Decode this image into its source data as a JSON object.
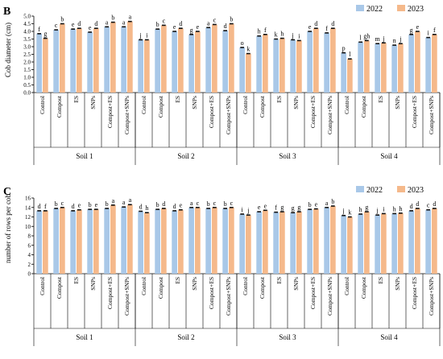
{
  "chart_data": [
    {
      "type": "bar",
      "panel_label": "B",
      "ylabel": "Cob diameter (cm)",
      "ylim": [
        0,
        5
      ],
      "yticks": [
        "0.0",
        "0.5",
        "1.0",
        "1.5",
        "2.0",
        "2.5",
        "3.0",
        "3.5",
        "4.0",
        "4.5",
        "5.0"
      ],
      "grid": false,
      "legend_position": "top-right",
      "groups": [
        "Soil 1",
        "Soil 2",
        "Soil 3",
        "Soil 4"
      ],
      "treatments": [
        "Control",
        "Compost",
        "ES",
        "SNPs",
        "Compost+ES",
        "Compost+SNPs"
      ],
      "series": [
        {
          "name": "2022",
          "color": "#a9c8e8",
          "values": [
            3.85,
            4.1,
            4.15,
            3.95,
            4.3,
            4.3,
            3.45,
            4.15,
            4.0,
            3.8,
            4.25,
            4.05,
            2.95,
            3.7,
            3.5,
            3.45,
            4.0,
            3.9,
            2.6,
            3.3,
            3.2,
            3.1,
            3.8,
            3.6
          ],
          "labels": [
            "f",
            "c",
            "e",
            "e",
            "a",
            "a",
            "j",
            "b",
            "e",
            "g",
            "a",
            "d",
            "o",
            "h",
            "k",
            "j",
            "e",
            "f",
            "p",
            "l",
            "m",
            "n",
            "g",
            "i"
          ]
        },
        {
          "name": "2023",
          "color": "#f5b98b",
          "values": [
            3.55,
            4.5,
            4.2,
            4.2,
            4.6,
            4.65,
            3.45,
            4.4,
            4.2,
            4.0,
            4.45,
            4.5,
            2.55,
            3.8,
            3.55,
            3.4,
            4.2,
            4.2,
            2.2,
            3.4,
            3.25,
            3.2,
            4.0,
            3.8
          ],
          "labels": [
            "g",
            "b",
            "d",
            "d",
            "b",
            "a",
            "i",
            "c",
            "d",
            "e",
            "c",
            "b",
            "k",
            "f",
            "h",
            "i",
            "d",
            "d",
            "l",
            "gh",
            "j",
            "j",
            "e",
            "f"
          ]
        }
      ]
    },
    {
      "type": "bar",
      "panel_label": "C",
      "ylabel": "number of rows per cob",
      "ylim": [
        0,
        16
      ],
      "yticks": [
        "0",
        "2",
        "4",
        "6",
        "8",
        "10",
        "12",
        "14",
        "16"
      ],
      "grid": false,
      "legend_position": "top-right",
      "groups": [
        "Soil 1",
        "Soil 2",
        "Soil 3",
        "Soil 4"
      ],
      "treatments": [
        "Control",
        "Compost",
        "ES",
        "SNPs",
        "Compost+ES",
        "Compost+SNPs"
      ],
      "series": [
        {
          "name": "2022",
          "color": "#a9c8e8",
          "values": [
            13.3,
            13.8,
            13.3,
            13.6,
            13.8,
            14.1,
            13.2,
            13.6,
            13.3,
            14.0,
            13.8,
            13.8,
            12.6,
            13.1,
            13.0,
            12.9,
            13.6,
            14.0,
            12.3,
            12.6,
            12.4,
            12.7,
            13.3,
            13.5
          ],
          "labels": [
            "d",
            "b",
            "d",
            "b",
            "b",
            "a",
            "d",
            "b",
            "d",
            "a",
            "b",
            "b",
            "i",
            "e",
            "f",
            "g",
            "b",
            "a",
            "j",
            "h",
            "j",
            "h",
            "d",
            "c"
          ]
        },
        {
          "name": "2023",
          "color": "#f5b98b",
          "values": [
            13.3,
            14.0,
            13.5,
            13.6,
            14.5,
            14.6,
            12.9,
            13.8,
            13.5,
            14.0,
            14.0,
            14.0,
            12.4,
            13.4,
            13.1,
            13.1,
            13.7,
            14.3,
            12.0,
            13.1,
            12.7,
            12.8,
            13.8,
            13.8
          ],
          "labels": [
            "f",
            "c",
            "e",
            "e",
            "a",
            "a",
            "h",
            "d",
            "e",
            "c",
            "c",
            "c",
            "j",
            "e",
            "g",
            "g",
            "e",
            "b",
            "k",
            "g",
            "i",
            "h",
            "d",
            "d"
          ]
        }
      ]
    }
  ]
}
